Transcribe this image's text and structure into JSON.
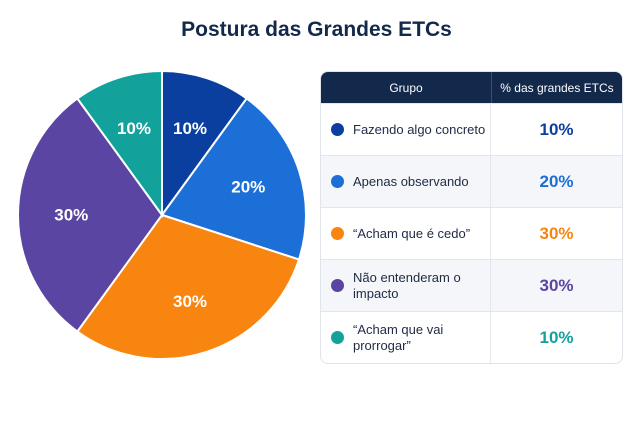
{
  "title": "Postura das Grandes ETCs",
  "table": {
    "header_group": "Grupo",
    "header_pct": "% das grandes ETCs"
  },
  "chart_data": {
    "type": "pie",
    "title": "Postura das Grandes ETCs",
    "slices": [
      {
        "label": "Fazendo algo concreto",
        "value": 10,
        "value_label": "10%",
        "color": "#0a3fa0"
      },
      {
        "label": "Apenas observando",
        "value": 20,
        "value_label": "20%",
        "color": "#1c6fd6"
      },
      {
        "label": "“Acham que é cedo”",
        "value": 30,
        "value_label": "30%",
        "color": "#f7850f"
      },
      {
        "label": "Não entenderam o impacto",
        "value": 30,
        "value_label": "30%",
        "color": "#5a45a3"
      },
      {
        "label": "“Ach​am que vai prorrogar”",
        "value": 10,
        "value_label": "10%",
        "color": "#13a19b"
      }
    ]
  }
}
